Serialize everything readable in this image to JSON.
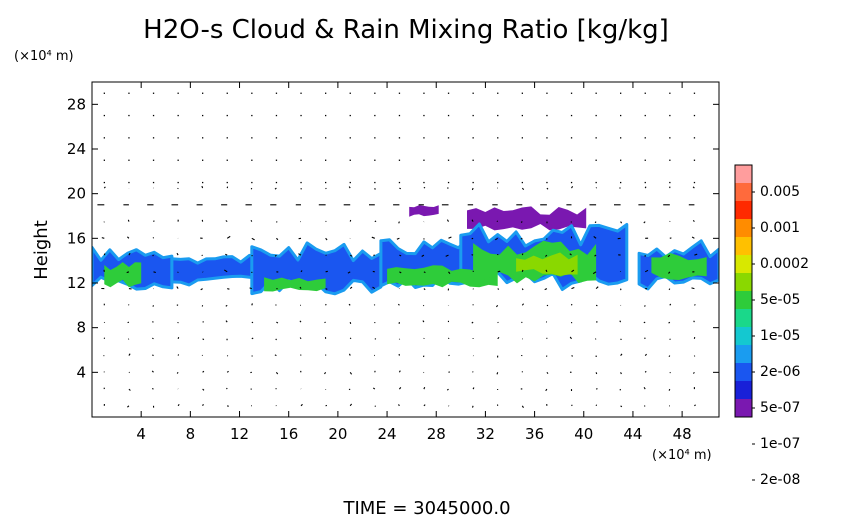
{
  "chart_data": {
    "type": "heatmap",
    "title": "H2O-s Cloud & Rain Mixing Ratio [kg/kg]",
    "ylabel": "Height",
    "y_unit_label": "(×10⁴ m)",
    "x_unit_label": "(×10⁴ m)",
    "footer": "TIME  =  3045000.0",
    "xlim": [
      0,
      51
    ],
    "ylim": [
      0,
      30
    ],
    "x_ticks": [
      "4",
      "8",
      "12",
      "16",
      "20",
      "24",
      "28",
      "32",
      "36",
      "40",
      "44",
      "48"
    ],
    "y_ticks": [
      "4",
      "8",
      "12",
      "16",
      "20",
      "24",
      "28"
    ],
    "x_tick_values": [
      4,
      8,
      12,
      16,
      20,
      24,
      28,
      32,
      36,
      40,
      44,
      48
    ],
    "y_tick_values": [
      4,
      8,
      12,
      16,
      20,
      24,
      28
    ],
    "colorbar": {
      "labels": [
        "0.005",
        "0.001",
        "0.0002",
        "5e-05",
        "1e-05",
        "2e-06",
        "5e-07",
        "1e-07",
        "2e-08"
      ],
      "colors": [
        "#ff9d9d",
        "#ff6a3c",
        "#ff2a00",
        "#ff8c00",
        "#ffc000",
        "#d8e800",
        "#8ad800",
        "#2ecc3a",
        "#1ad88a",
        "#14c8d0",
        "#1a9cf0",
        "#1a56f0",
        "#1820d8",
        "#7a18b0"
      ]
    },
    "cloud_regions": [
      {
        "level": "2e-08",
        "x": [
          25.8,
          28.2
        ],
        "y": [
          17.9,
          19.0
        ]
      },
      {
        "level": "2e-08",
        "x": [
          30.5,
          40.2
        ],
        "y": [
          16.6,
          18.9
        ]
      },
      {
        "level": "2e-07",
        "x": [
          0,
          6.5
        ],
        "y": [
          11.4,
          15.3
        ]
      },
      {
        "level": "2e-07",
        "x": [
          6.5,
          13.5
        ],
        "y": [
          11.8,
          14.6
        ]
      },
      {
        "level": "2e-07",
        "x": [
          13,
          23.5
        ],
        "y": [
          11.0,
          15.6
        ]
      },
      {
        "level": "2e-07",
        "x": [
          23.5,
          30.5
        ],
        "y": [
          11.6,
          15.9
        ]
      },
      {
        "level": "2e-07",
        "x": [
          30,
          43.5
        ],
        "y": [
          11.2,
          17.3
        ]
      },
      {
        "level": "2e-07",
        "x": [
          44.5,
          51
        ],
        "y": [
          11.4,
          15.9
        ]
      },
      {
        "level": "1e-05",
        "x": [
          1,
          4
        ],
        "y": [
          11.6,
          14.0
        ]
      },
      {
        "level": "1e-05",
        "x": [
          14,
          19
        ],
        "y": [
          11.2,
          12.6
        ]
      },
      {
        "level": "1e-05",
        "x": [
          24,
          33
        ],
        "y": [
          11.6,
          13.6
        ]
      },
      {
        "level": "1e-05",
        "x": [
          31,
          41
        ],
        "y": [
          11.8,
          15.9
        ]
      },
      {
        "level": "1e-05",
        "x": [
          45.5,
          50
        ],
        "y": [
          12.2,
          14.8
        ]
      },
      {
        "level": "5e-05",
        "x": [
          34.5,
          39.5
        ],
        "y": [
          12.6,
          14.8
        ]
      }
    ]
  }
}
